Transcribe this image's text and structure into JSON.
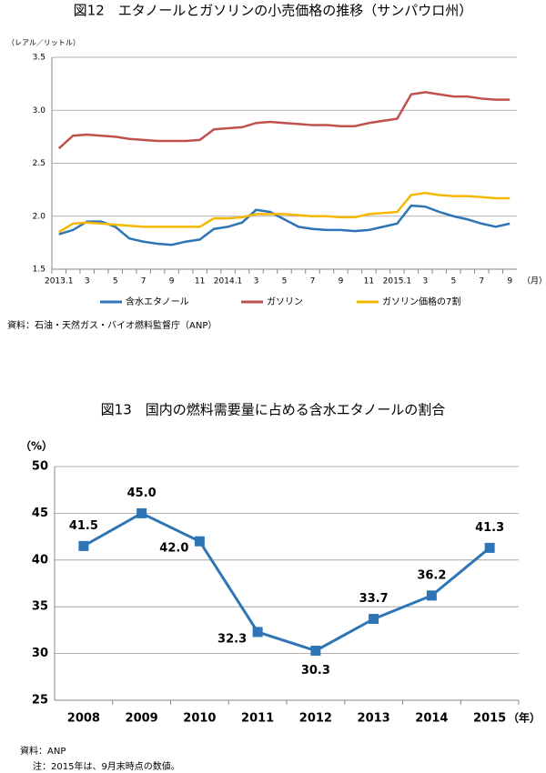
{
  "chart_data": [
    {
      "type": "line",
      "title": "図12　エタノールとガソリンの小売価格の推移（サンパウロ州）",
      "y_label": "（レアル／リットル）",
      "x_label": "（月）",
      "categories": [
        "2013.1",
        null,
        "3",
        null,
        "5",
        null,
        "7",
        null,
        "9",
        null,
        "11",
        null,
        "2014.1",
        null,
        "3",
        null,
        "5",
        null,
        "7",
        null,
        "9",
        null,
        "11",
        null,
        "2015.1",
        null,
        "3",
        null,
        "5",
        null,
        "7",
        null,
        "9"
      ],
      "series": [
        {
          "name": "含水エタノール",
          "color": "#2e75b6",
          "values": [
            1.83,
            1.87,
            1.95,
            1.95,
            1.9,
            1.79,
            1.76,
            1.74,
            1.73,
            1.76,
            1.78,
            1.88,
            1.9,
            1.94,
            2.06,
            2.04,
            1.97,
            1.9,
            1.88,
            1.87,
            1.87,
            1.86,
            1.87,
            1.9,
            1.93,
            2.1,
            2.09,
            2.04,
            2.0,
            1.97,
            1.93,
            1.9,
            1.93
          ]
        },
        {
          "name": "ガソリン",
          "color": "#c0504d",
          "values": [
            2.64,
            2.76,
            2.77,
            2.76,
            2.75,
            2.73,
            2.72,
            2.71,
            2.71,
            2.71,
            2.72,
            2.82,
            2.83,
            2.84,
            2.88,
            2.89,
            2.88,
            2.87,
            2.86,
            2.86,
            2.85,
            2.85,
            2.88,
            2.9,
            2.92,
            3.15,
            3.17,
            3.15,
            3.13,
            3.13,
            3.11,
            3.1,
            3.1
          ]
        },
        {
          "name": "ガソリン価格の7割",
          "color": "#f5b800",
          "values": [
            1.85,
            1.93,
            1.94,
            1.93,
            1.92,
            1.91,
            1.9,
            1.9,
            1.9,
            1.9,
            1.9,
            1.98,
            1.98,
            1.99,
            2.02,
            2.02,
            2.02,
            2.01,
            2.0,
            2.0,
            1.99,
            1.99,
            2.02,
            2.03,
            2.04,
            2.2,
            2.22,
            2.2,
            2.19,
            2.19,
            2.18,
            2.17,
            2.17
          ]
        }
      ],
      "ylim": [
        1.5,
        3.5
      ],
      "yticks": [
        1.5,
        {
          "value": 2,
          "label": "2.0"
        },
        2.5,
        {
          "value": 3,
          "label": "3.0"
        },
        3.5
      ],
      "grid": true,
      "legend": "bottom",
      "source": "資料：石油・天然ガス・バイオ燃料監督庁（ANP）"
    },
    {
      "type": "line",
      "title": "図13　国内の燃料需要量に占める含水エタノールの割合",
      "y_label": "（%）",
      "x_label": "（年）",
      "categories": [
        "2008",
        "2009",
        "2010",
        "2011",
        "2012",
        "2013",
        "2014",
        "2015"
      ],
      "values": [
        41.5,
        45.0,
        42.0,
        32.3,
        30.3,
        33.7,
        36.2,
        41.3
      ],
      "value_labels": [
        "41.5",
        "45.0",
        "42.0",
        "32.3",
        "30.3",
        "33.7",
        "36.2",
        "41.3"
      ],
      "color": "#2e75b6",
      "markers": true,
      "ylim": [
        25,
        50
      ],
      "yticks": [
        25,
        30,
        35,
        40,
        45,
        50
      ],
      "grid": true,
      "source": "資料：ANP",
      "note": "注：2015年は、9月末時点の数値。"
    }
  ]
}
